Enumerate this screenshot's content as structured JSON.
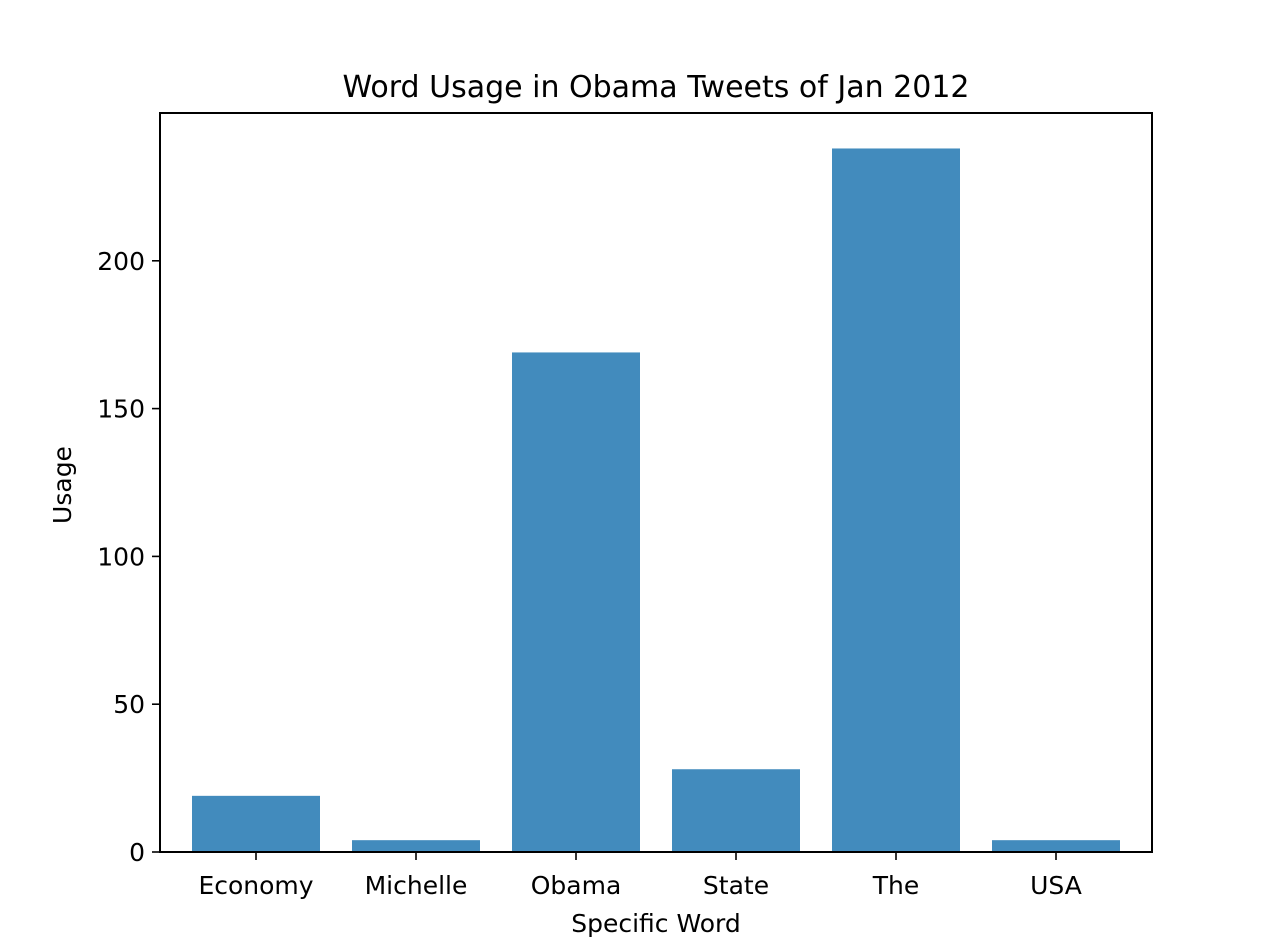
{
  "chart_data": {
    "type": "bar",
    "title": "Word Usage in Obama Tweets of Jan 2012",
    "xlabel": "Specific Word",
    "ylabel": "Usage",
    "categories": [
      "Economy",
      "Michelle",
      "Obama",
      "State",
      "The",
      "USA"
    ],
    "values": [
      19,
      4,
      169,
      28,
      238,
      4
    ],
    "ylim": [
      0,
      250
    ],
    "yticks": [
      0,
      50,
      100,
      150,
      200
    ],
    "bar_color": "#428bbd",
    "grid": false,
    "legend": "none"
  }
}
